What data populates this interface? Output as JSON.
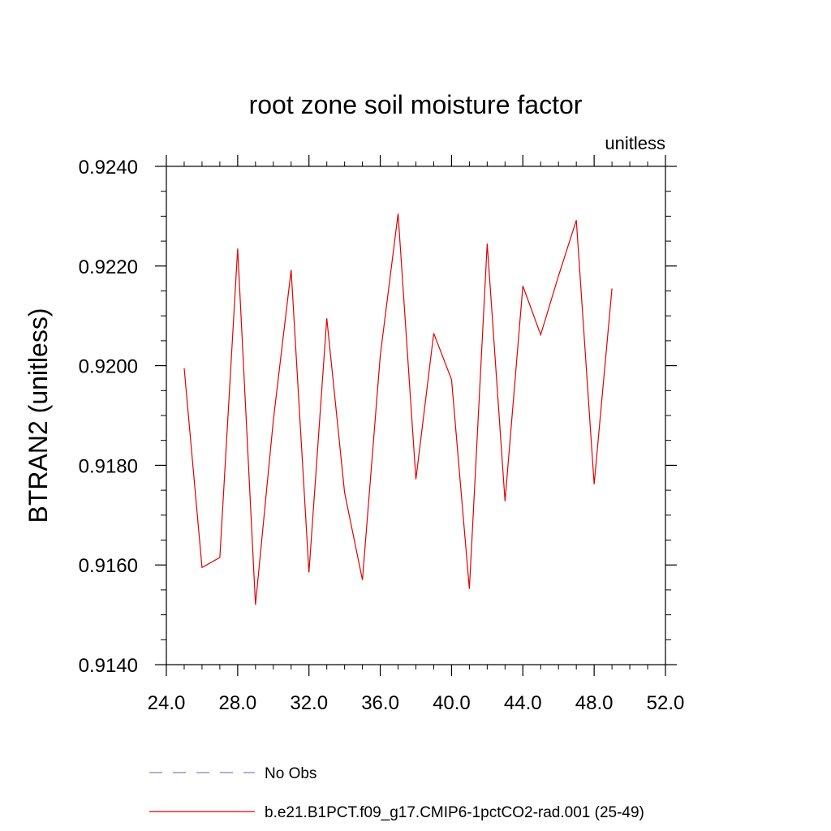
{
  "chart_data": {
    "type": "line",
    "title": "root zone soil moisture factor",
    "units_label": "unitless",
    "ylabel": "BTRAN2  (unitless)",
    "xlabel": "",
    "xlim": [
      24.0,
      52.0
    ],
    "ylim": [
      0.914,
      0.924
    ],
    "x_ticks": [
      "24.0",
      "28.0",
      "32.0",
      "36.0",
      "40.0",
      "44.0",
      "48.0",
      "52.0"
    ],
    "y_ticks": [
      "0.9140",
      "0.9160",
      "0.9180",
      "0.9200",
      "0.9220",
      "0.9240"
    ],
    "grid": false,
    "legend_position": "bottom",
    "series": [
      {
        "name": "b.e21.B1PCT.f09_g17.CMIP6-1pctCO2-rad.001 (25-49)",
        "color": "#e00000",
        "style": "solid",
        "x": [
          25,
          26,
          27,
          28,
          29,
          30,
          31,
          32,
          33,
          34,
          35,
          36,
          37,
          38,
          39,
          40,
          41,
          42,
          43,
          44,
          45,
          46,
          47,
          48,
          49
        ],
        "values": [
          0.91995,
          0.91595,
          0.91615,
          0.92235,
          0.9152,
          0.9189,
          0.92192,
          0.91585,
          0.92095,
          0.91745,
          0.9157,
          0.9202,
          0.92305,
          0.91772,
          0.92065,
          0.91972,
          0.91552,
          0.92245,
          0.91728,
          0.9216,
          0.92062,
          0.9218,
          0.92292,
          0.91762,
          0.92155
        ]
      }
    ],
    "legend": [
      {
        "label": "No Obs",
        "color": "#8080c0",
        "style": "dashed"
      },
      {
        "label": "b.e21.B1PCT.f09_g17.CMIP6-1pctCO2-rad.001 (25-49)",
        "color": "#e00000",
        "style": "solid"
      }
    ]
  }
}
